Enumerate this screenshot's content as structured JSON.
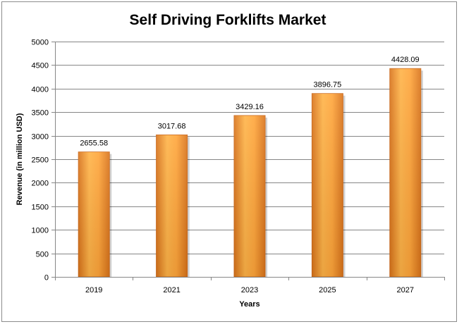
{
  "chart_data": {
    "type": "bar",
    "title": "Self Driving Forklifts Market",
    "xlabel": "Years",
    "ylabel": "Revenue (in million USD)",
    "categories": [
      "2019",
      "2021",
      "2023",
      "2025",
      "2027"
    ],
    "values": [
      2655.58,
      3017.68,
      3429.16,
      3896.75,
      4428.09
    ],
    "value_labels": [
      "2655.58",
      "3017.68",
      "3429.16",
      "3896.75",
      "4428.09"
    ],
    "ylim": [
      0,
      5000
    ],
    "yticks": [
      0,
      500,
      1000,
      1500,
      2000,
      2500,
      3000,
      3500,
      4000,
      4500,
      5000
    ],
    "grid": true,
    "legend": "none",
    "colors": {
      "bar_light": "#FFB347",
      "bar_mid": "#F7941D",
      "bar_dark": "#D9731A",
      "bar_edge": "#C8661A",
      "grid": "#868686",
      "axis": "#868686"
    }
  }
}
